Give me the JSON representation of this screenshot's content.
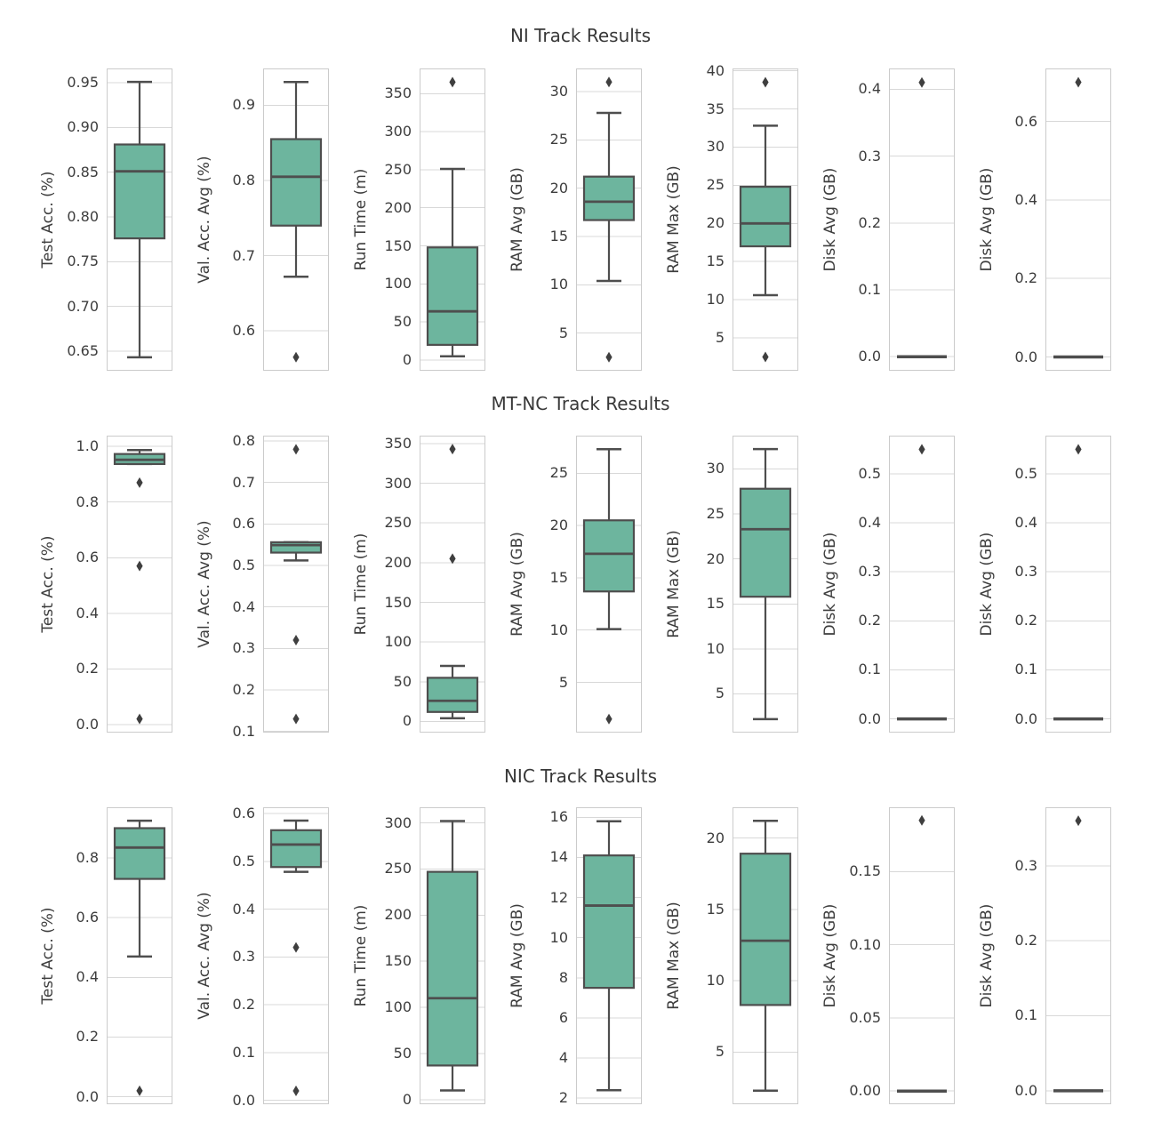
{
  "styles": {
    "box_fill": "#6db59e",
    "line_color": "#4e4e4e",
    "flier_color": "#3f3f3f",
    "grid_color": "#d8d8d8",
    "spine_color": "#cbcbcb",
    "text_color": "#3d3d3d",
    "title_color": "#383838",
    "background": "#ffffff"
  },
  "chart_data": [
    {
      "type": "boxplot",
      "title": "NI Track Results",
      "legend": "none",
      "grid": "horizontal",
      "subplots": [
        {
          "ylabel": "Test Acc. (%)",
          "ticks": [
            0.65,
            0.7,
            0.75,
            0.8,
            0.85,
            0.9,
            0.95
          ],
          "tick_labels": [
            "0.65",
            "0.70",
            "0.75",
            "0.80",
            "0.85",
            "0.90",
            "0.95"
          ],
          "ylim": [
            0.628,
            0.966
          ],
          "box": {
            "whislo": 0.643,
            "q1": 0.776,
            "med": 0.851,
            "q3": 0.881,
            "whishi": 0.951
          },
          "fliers": []
        },
        {
          "ylabel": "Val. Acc. Avg (%)",
          "ticks": [
            0.6,
            0.7,
            0.8,
            0.9
          ],
          "tick_labels": [
            "0.6",
            "0.7",
            "0.8",
            "0.9"
          ],
          "ylim": [
            0.547,
            0.949
          ],
          "box": {
            "whislo": 0.672,
            "q1": 0.74,
            "med": 0.805,
            "q3": 0.855,
            "whishi": 0.931
          },
          "fliers": [
            0.565
          ]
        },
        {
          "ylabel": "Run Time (m)",
          "ticks": [
            0,
            50,
            100,
            150,
            200,
            250,
            300,
            350
          ],
          "tick_labels": [
            "0",
            "50",
            "100",
            "150",
            "200",
            "250",
            "300",
            "350"
          ],
          "ylim": [
            -14,
            383
          ],
          "box": {
            "whislo": 5,
            "q1": 20,
            "med": 64,
            "q3": 148,
            "whishi": 251
          },
          "fliers": [
            365
          ]
        },
        {
          "ylabel": "RAM Avg (GB)",
          "ticks": [
            5,
            10,
            15,
            20,
            25,
            30
          ],
          "tick_labels": [
            "5",
            "10",
            "15",
            "20",
            "25",
            "30"
          ],
          "ylim": [
            1.1,
            32.4
          ],
          "box": {
            "whislo": 10.4,
            "q1": 16.7,
            "med": 18.6,
            "q3": 21.2,
            "whishi": 27.8
          },
          "fliers": [
            31.0,
            2.5
          ]
        },
        {
          "ylabel": "RAM Max (GB)",
          "ticks": [
            5,
            10,
            15,
            20,
            25,
            30,
            35,
            40
          ],
          "tick_labels": [
            "5",
            "10",
            "15",
            "20",
            "25",
            "30",
            "35",
            "40"
          ],
          "ylim": [
            0.7,
            40.3
          ],
          "box": {
            "whislo": 10.6,
            "q1": 17.0,
            "med": 20.0,
            "q3": 24.8,
            "whishi": 32.8
          },
          "fliers": [
            38.5,
            2.5
          ]
        },
        {
          "ylabel": "Disk Avg (GB)",
          "ticks": [
            0.0,
            0.1,
            0.2,
            0.3,
            0.4
          ],
          "tick_labels": [
            "0.0",
            "0.1",
            "0.2",
            "0.3",
            "0.4"
          ],
          "ylim": [
            -0.021,
            0.431
          ],
          "box": {
            "whislo": 0,
            "q1": 0,
            "med": 0,
            "q3": 0,
            "whishi": 0
          },
          "fliers": [
            0.41
          ]
        },
        {
          "ylabel": "Disk Avg (GB)",
          "ticks": [
            0.0,
            0.2,
            0.4,
            0.6
          ],
          "tick_labels": [
            "0.0",
            "0.2",
            "0.4",
            "0.6"
          ],
          "ylim": [
            -0.035,
            0.735
          ],
          "box": {
            "whislo": 0,
            "q1": 0,
            "med": 0,
            "q3": 0,
            "whishi": 0
          },
          "fliers": [
            0.7
          ]
        }
      ]
    },
    {
      "type": "boxplot",
      "title": "MT-NC Track Results",
      "legend": "none",
      "grid": "horizontal",
      "subplots": [
        {
          "ylabel": "Test Acc. (%)",
          "ticks": [
            0.0,
            0.2,
            0.4,
            0.6,
            0.8,
            1.0
          ],
          "tick_labels": [
            "0.0",
            "0.2",
            "0.4",
            "0.6",
            "0.8",
            "1.0"
          ],
          "ylim": [
            -0.029,
            1.039
          ],
          "box": {
            "whislo": 0.937,
            "q1": 0.937,
            "med": 0.952,
            "q3": 0.973,
            "whishi": 0.987
          },
          "fliers": [
            0.87,
            0.57,
            0.02
          ]
        },
        {
          "ylabel": "Val. Acc. Avg (%)",
          "ticks": [
            0.1,
            0.2,
            0.3,
            0.4,
            0.5,
            0.6,
            0.7,
            0.8
          ],
          "tick_labels": [
            "0.1",
            "0.2",
            "0.3",
            "0.4",
            "0.5",
            "0.6",
            "0.7",
            "0.8"
          ],
          "ylim": [
            0.097,
            0.813
          ],
          "box": {
            "whislo": 0.512,
            "q1": 0.531,
            "med": 0.549,
            "q3": 0.556,
            "whishi": 0.556
          },
          "fliers": [
            0.78,
            0.32,
            0.13
          ]
        },
        {
          "ylabel": "Run Time (m)",
          "ticks": [
            0,
            50,
            100,
            150,
            200,
            250,
            300,
            350
          ],
          "tick_labels": [
            "0",
            "50",
            "100",
            "150",
            "200",
            "250",
            "300",
            "350"
          ],
          "ylim": [
            -14,
            360
          ],
          "box": {
            "whislo": 4,
            "q1": 12,
            "med": 26,
            "q3": 55,
            "whishi": 70
          },
          "fliers": [
            343,
            205
          ]
        },
        {
          "ylabel": "RAM Avg (GB)",
          "ticks": [
            5,
            10,
            15,
            20,
            25
          ],
          "tick_labels": [
            "5",
            "10",
            "15",
            "20",
            "25"
          ],
          "ylim": [
            0.2,
            28.6
          ],
          "box": {
            "whislo": 10.1,
            "q1": 13.7,
            "med": 17.3,
            "q3": 20.5,
            "whishi": 27.3
          },
          "fliers": [
            1.5
          ]
        },
        {
          "ylabel": "RAM Max (GB)",
          "ticks": [
            5,
            10,
            15,
            20,
            25,
            30
          ],
          "tick_labels": [
            "5",
            "10",
            "15",
            "20",
            "25",
            "30"
          ],
          "ylim": [
            0.7,
            33.7
          ],
          "box": {
            "whislo": 2.2,
            "q1": 15.8,
            "med": 23.3,
            "q3": 27.8,
            "whishi": 32.2
          },
          "fliers": []
        },
        {
          "ylabel": "Disk Avg (GB)",
          "ticks": [
            0.0,
            0.1,
            0.2,
            0.3,
            0.4,
            0.5
          ],
          "tick_labels": [
            "0.0",
            "0.1",
            "0.2",
            "0.3",
            "0.4",
            "0.5"
          ],
          "ylim": [
            -0.028,
            0.578
          ],
          "box": {
            "whislo": 0,
            "q1": 0,
            "med": 0,
            "q3": 0,
            "whishi": 0
          },
          "fliers": [
            0.55
          ]
        },
        {
          "ylabel": "Disk Avg (GB)",
          "ticks": [
            0.0,
            0.1,
            0.2,
            0.3,
            0.4,
            0.5
          ],
          "tick_labels": [
            "0.0",
            "0.1",
            "0.2",
            "0.3",
            "0.4",
            "0.5"
          ],
          "ylim": [
            -0.028,
            0.578
          ],
          "box": {
            "whislo": 0,
            "q1": 0,
            "med": 0,
            "q3": 0,
            "whishi": 0
          },
          "fliers": [
            0.55
          ]
        }
      ]
    },
    {
      "type": "boxplot",
      "title": "NIC Track Results",
      "legend": "none",
      "grid": "horizontal",
      "subplots": [
        {
          "ylabel": "Test Acc. (%)",
          "ticks": [
            0.0,
            0.2,
            0.4,
            0.6,
            0.8
          ],
          "tick_labels": [
            "0.0",
            "0.2",
            "0.4",
            "0.6",
            "0.8"
          ],
          "ylim": [
            -0.025,
            0.97
          ],
          "box": {
            "whislo": 0.47,
            "q1": 0.73,
            "med": 0.835,
            "q3": 0.9,
            "whishi": 0.925
          },
          "fliers": [
            0.02
          ]
        },
        {
          "ylabel": "Val. Acc. Avg (%)",
          "ticks": [
            0.0,
            0.1,
            0.2,
            0.3,
            0.4,
            0.5,
            0.6
          ],
          "tick_labels": [
            "0.0",
            "0.1",
            "0.2",
            "0.3",
            "0.4",
            "0.5",
            "0.6"
          ],
          "ylim": [
            -0.008,
            0.613
          ],
          "box": {
            "whislo": 0.478,
            "q1": 0.488,
            "med": 0.535,
            "q3": 0.565,
            "whishi": 0.585
          },
          "fliers": [
            0.32,
            0.02
          ]
        },
        {
          "ylabel": "Run Time (m)",
          "ticks": [
            0,
            50,
            100,
            150,
            200,
            250,
            300
          ],
          "tick_labels": [
            "0",
            "50",
            "100",
            "150",
            "200",
            "250",
            "300"
          ],
          "ylim": [
            -5,
            317
          ],
          "box": {
            "whislo": 10,
            "q1": 37,
            "med": 110,
            "q3": 247,
            "whishi": 302
          },
          "fliers": []
        },
        {
          "ylabel": "RAM Avg (GB)",
          "ticks": [
            2,
            4,
            6,
            8,
            10,
            12,
            14,
            16
          ],
          "tick_labels": [
            "2",
            "4",
            "6",
            "8",
            "10",
            "12",
            "14",
            "16"
          ],
          "ylim": [
            1.7,
            16.5
          ],
          "box": {
            "whislo": 2.4,
            "q1": 7.5,
            "med": 11.6,
            "q3": 14.1,
            "whishi": 15.8
          },
          "fliers": []
        },
        {
          "ylabel": "RAM Max (GB)",
          "ticks": [
            5,
            10,
            15,
            20
          ],
          "tick_labels": [
            "5",
            "10",
            "15",
            "20"
          ],
          "ylim": [
            1.35,
            22.15
          ],
          "box": {
            "whislo": 2.3,
            "q1": 8.3,
            "med": 12.8,
            "q3": 18.9,
            "whishi": 21.2
          },
          "fliers": []
        },
        {
          "ylabel": "Disk Avg (GB)",
          "ticks": [
            0.0,
            0.05,
            0.1,
            0.15
          ],
          "tick_labels": [
            "0.00",
            "0.05",
            "0.10",
            "0.15"
          ],
          "ylim": [
            -0.009,
            0.194
          ],
          "box": {
            "whislo": 0,
            "q1": 0,
            "med": 0,
            "q3": 0,
            "whishi": 0
          },
          "fliers": [
            0.185
          ]
        },
        {
          "ylabel": "Disk Avg (GB)",
          "ticks": [
            0.0,
            0.1,
            0.2,
            0.3
          ],
          "tick_labels": [
            "0.0",
            "0.1",
            "0.2",
            "0.3"
          ],
          "ylim": [
            -0.018,
            0.378
          ],
          "box": {
            "whislo": 0,
            "q1": 0,
            "med": 0,
            "q3": 0,
            "whishi": 0
          },
          "fliers": [
            0.36
          ]
        }
      ]
    }
  ]
}
